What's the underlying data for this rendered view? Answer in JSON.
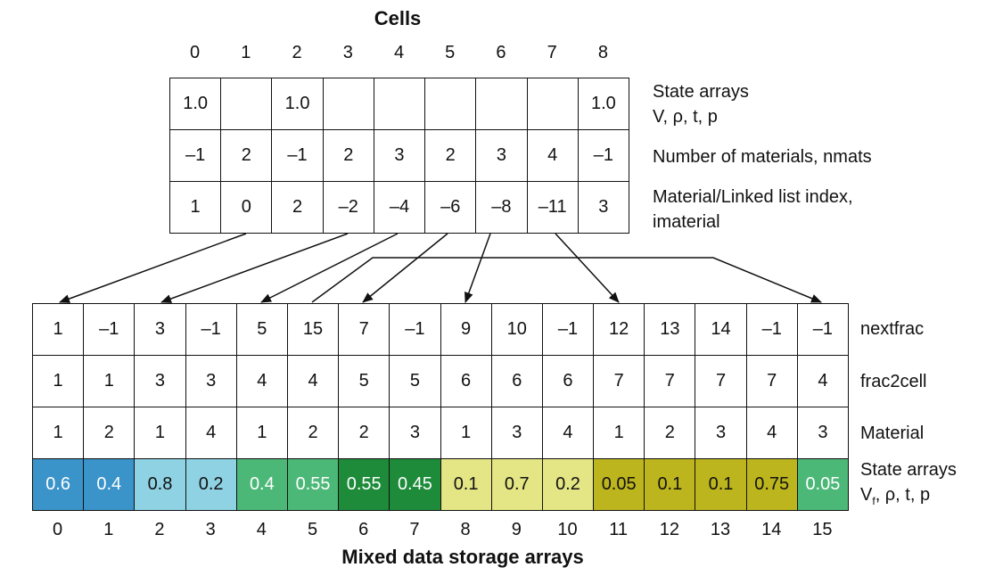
{
  "cells": {
    "title": "Cells",
    "indices": [
      "0",
      "1",
      "2",
      "3",
      "4",
      "5",
      "6",
      "7",
      "8"
    ],
    "rows": [
      [
        "1.0",
        "",
        "1.0",
        "",
        "",
        "",
        "",
        "",
        "1.0"
      ],
      [
        "–1",
        "2",
        "–1",
        "2",
        "3",
        "2",
        "3",
        "4",
        "–1"
      ],
      [
        "1",
        "0",
        "2",
        "–2",
        "–4",
        "–6",
        "–8",
        "–11",
        "3"
      ]
    ],
    "labels": {
      "state_line1": "State arrays",
      "state_line2": "V, ρ, t, p",
      "nmats": "Number of materials, nmats",
      "imat_line1": "Material/Linked list index,",
      "imat_line2": "imaterial"
    }
  },
  "mixed": {
    "title": "Mixed data storage arrays",
    "indices": [
      "0",
      "1",
      "2",
      "3",
      "4",
      "5",
      "6",
      "7",
      "8",
      "9",
      "10",
      "11",
      "12",
      "13",
      "14",
      "15"
    ],
    "nextfrac": [
      "1",
      "–1",
      "3",
      "–1",
      "5",
      "15",
      "7",
      "–1",
      "9",
      "10",
      "–1",
      "12",
      "13",
      "14",
      "–1",
      "–1"
    ],
    "frac2cell": [
      "1",
      "1",
      "3",
      "3",
      "4",
      "4",
      "5",
      "5",
      "6",
      "6",
      "6",
      "7",
      "7",
      "7",
      "7",
      "4"
    ],
    "material": [
      "1",
      "2",
      "1",
      "4",
      "1",
      "2",
      "2",
      "3",
      "1",
      "3",
      "4",
      "1",
      "2",
      "3",
      "4",
      "3"
    ],
    "state": [
      "0.6",
      "0.4",
      "0.8",
      "0.2",
      "0.4",
      "0.55",
      "0.55",
      "0.45",
      "0.1",
      "0.7",
      "0.2",
      "0.05",
      "0.1",
      "0.1",
      "0.75",
      "0.05"
    ],
    "state_colors": [
      "#3a93c9",
      "#3a93c9",
      "#8fd2e4",
      "#8fd2e4",
      "#4cb878",
      "#4cb878",
      "#1e8b3b",
      "#1e8b3b",
      "#e4e584",
      "#e4e584",
      "#e4e584",
      "#bcb51d",
      "#bcb51d",
      "#bcb51d",
      "#bcb51d",
      "#4cb878"
    ],
    "labels": {
      "nextfrac": "nextfrac",
      "frac2cell": "frac2cell",
      "material": "Material",
      "state_line1": "State arrays",
      "state_line2_base": "V",
      "state_line2_sub": "f",
      "state_line2_rest": ", ρ, t, p"
    }
  }
}
